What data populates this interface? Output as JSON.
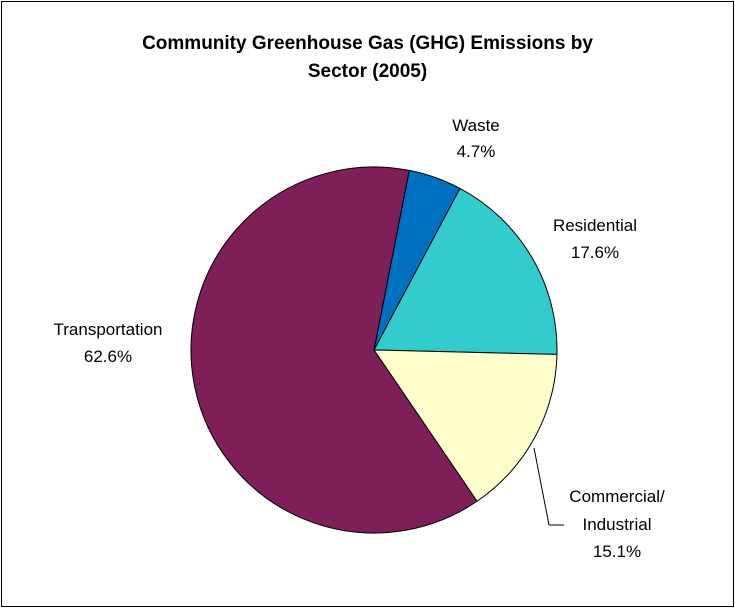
{
  "chart_data": {
    "type": "pie",
    "title_lines": [
      "Community Greenhouse Gas (GHG) Emissions by",
      "Sector (2005)"
    ],
    "slices": [
      {
        "name": "Waste",
        "value": 4.7,
        "value_label": "4.7%",
        "color": "#0070C0"
      },
      {
        "name": "Residential",
        "value": 17.6,
        "value_label": "17.6%",
        "color": "#33CCCC"
      },
      {
        "name": "Commercial/",
        "name_line2": "Industrial",
        "value": 15.1,
        "value_label": "15.1%",
        "color": "#FFFFCC"
      },
      {
        "name": "Transportation",
        "value": 62.6,
        "value_label": "62.6%",
        "color": "#7F1F5A"
      }
    ],
    "start_angle_deg": 78.9,
    "direction": "clockwise",
    "legend": "none"
  }
}
